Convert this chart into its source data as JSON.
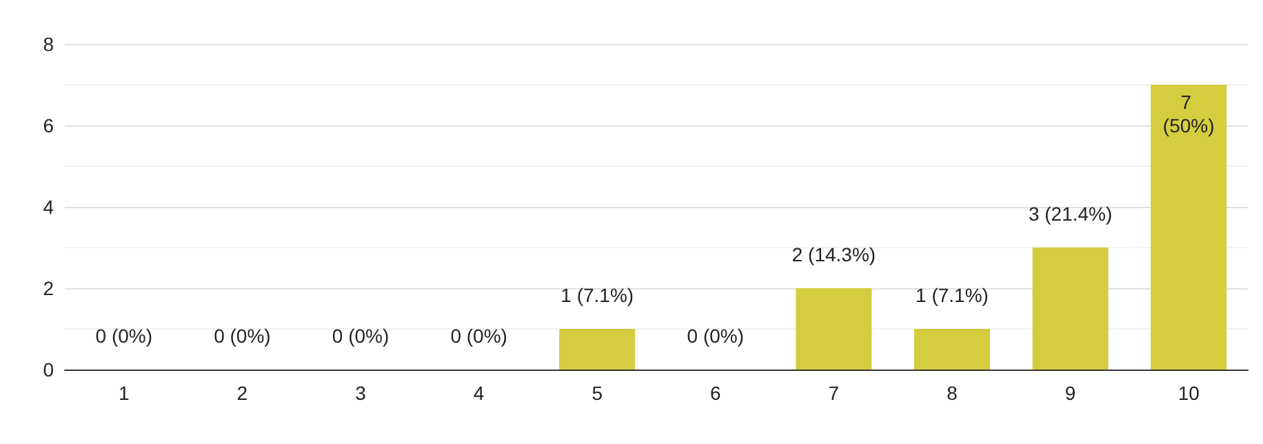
{
  "chart_data": {
    "type": "bar",
    "categories": [
      "1",
      "2",
      "3",
      "4",
      "5",
      "6",
      "7",
      "8",
      "9",
      "10"
    ],
    "values": [
      0,
      0,
      0,
      0,
      1,
      0,
      2,
      1,
      3,
      7
    ],
    "value_labels": [
      "0 (0%)",
      "0 (0%)",
      "0 (0%)",
      "0 (0%)",
      "1 (7.1%)",
      "0 (0%)",
      "2 (14.3%)",
      "1 (7.1%)",
      "3 (21.4%)",
      "7 (50%)"
    ],
    "color": "#d5cc40",
    "ylim": [
      0,
      8
    ],
    "yticks": [
      0,
      2,
      4,
      6,
      8
    ],
    "grid": "y"
  }
}
